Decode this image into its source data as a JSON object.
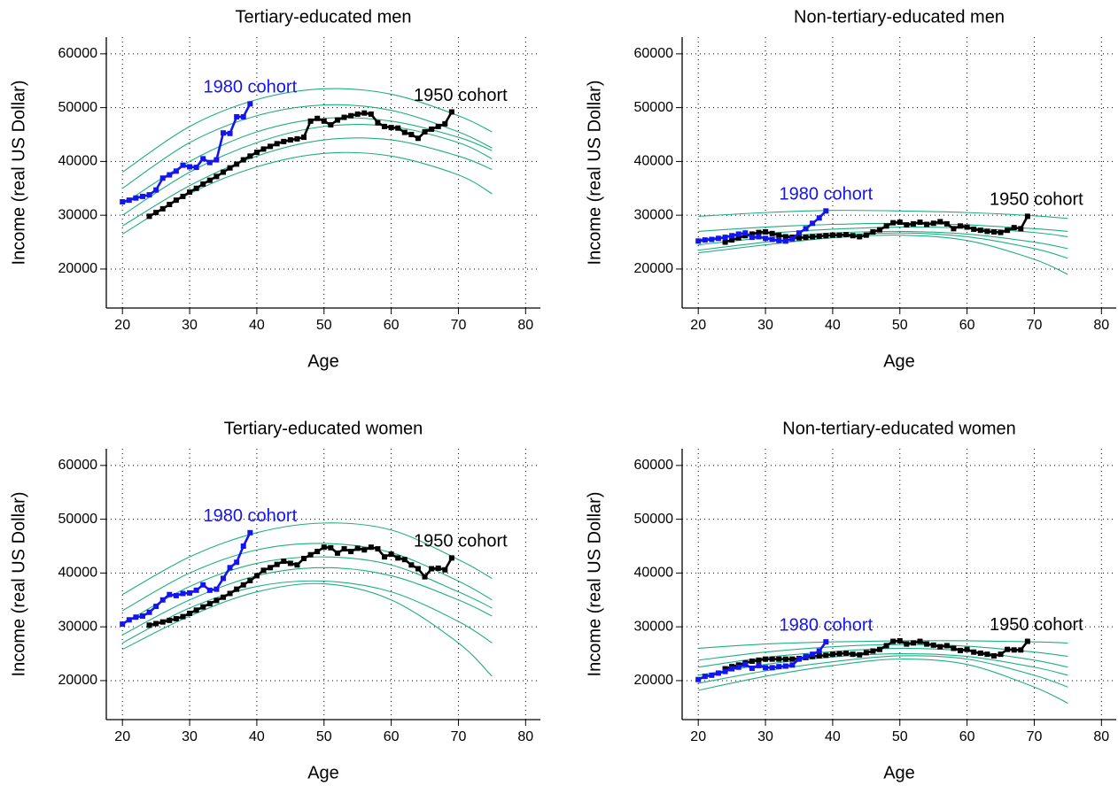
{
  "chart_data": [
    {
      "type": "line",
      "title": "Tertiary-educated men",
      "x_label": "Age",
      "y_label": "Income (real US Dollar)",
      "xlim": [
        17.6,
        82.2
      ],
      "ylim": [
        12750,
        63100
      ],
      "xticks": [
        20,
        30,
        40,
        50,
        60,
        70,
        80
      ],
      "yticks": [
        20000,
        30000,
        40000,
        50000,
        60000
      ],
      "grid": true,
      "curve_color": "#1fae84",
      "curve_x": [
        20,
        30,
        40,
        50,
        60,
        70,
        75
      ],
      "curves": [
        [
          38000,
          46500,
          51500,
          53500,
          52500,
          48500,
          45500
        ],
        [
          35000,
          43500,
          48500,
          50500,
          49500,
          45500,
          42500
        ],
        [
          32000,
          40000,
          45500,
          48000,
          47500,
          44500,
          42000
        ],
        [
          30000,
          38000,
          43500,
          46500,
          46500,
          43500,
          40500
        ],
        [
          28000,
          35500,
          41000,
          44000,
          44000,
          41000,
          38500
        ],
        [
          26500,
          34000,
          39000,
          41500,
          41000,
          37500,
          34000
        ]
      ],
      "series": [
        {
          "name": "1950 cohort",
          "color": "#000000",
          "x": [
            24,
            25,
            26,
            27,
            28,
            29,
            30,
            31,
            32,
            33,
            34,
            35,
            36,
            37,
            38,
            39,
            40,
            41,
            42,
            43,
            44,
            45,
            46,
            47,
            48,
            49,
            50,
            51,
            52,
            53,
            54,
            55,
            56,
            57,
            58,
            59,
            60,
            61,
            62,
            63,
            64,
            65,
            66,
            67,
            68,
            69
          ],
          "values": [
            29800,
            30500,
            31200,
            32000,
            32800,
            33500,
            34300,
            35000,
            35800,
            36500,
            37200,
            38000,
            38800,
            39500,
            40300,
            41000,
            41700,
            42300,
            42800,
            43300,
            43700,
            44000,
            44200,
            44500,
            47500,
            48000,
            47500,
            46800,
            47700,
            48200,
            48500,
            48800,
            49000,
            48800,
            47200,
            46500,
            46300,
            46200,
            45400,
            45000,
            44300,
            45500,
            46000,
            46500,
            47000,
            49200
          ]
        },
        {
          "name": "1980 cohort",
          "color": "#1414f0",
          "x": [
            20,
            21,
            22,
            23,
            24,
            25,
            26,
            27,
            28,
            29,
            30,
            31,
            32,
            33,
            34,
            35,
            36,
            37,
            38,
            39
          ],
          "values": [
            32500,
            32800,
            33200,
            33500,
            33800,
            34700,
            36900,
            37500,
            38200,
            39300,
            39000,
            38900,
            40500,
            39800,
            40300,
            45300,
            45200,
            48300,
            48300,
            50700
          ]
        }
      ]
    },
    {
      "type": "line",
      "title": "Non-tertiary-educated men",
      "x_label": "Age",
      "y_label": "Income (real US Dollar)",
      "xlim": [
        17.6,
        82.2
      ],
      "ylim": [
        12750,
        63100
      ],
      "xticks": [
        20,
        30,
        40,
        50,
        60,
        70,
        80
      ],
      "yticks": [
        20000,
        30000,
        40000,
        50000,
        60000
      ],
      "grid": true,
      "curve_color": "#1fae84",
      "curve_x": [
        20,
        30,
        40,
        50,
        60,
        70,
        75
      ],
      "curves": [
        [
          29800,
          30500,
          30900,
          30800,
          30500,
          29900,
          29400
        ],
        [
          27000,
          27800,
          28300,
          28500,
          28200,
          27500,
          27000
        ],
        [
          25500,
          26600,
          27400,
          27800,
          27600,
          26800,
          26000
        ],
        [
          24500,
          25800,
          26700,
          27000,
          26500,
          25000,
          23800
        ],
        [
          23500,
          25000,
          26200,
          26700,
          26000,
          23800,
          22000
        ],
        [
          23000,
          24500,
          25800,
          26300,
          25300,
          21800,
          19000
        ]
      ],
      "series": [
        {
          "name": "1950 cohort",
          "color": "#000000",
          "x": [
            24,
            25,
            26,
            27,
            28,
            29,
            30,
            31,
            32,
            33,
            34,
            35,
            36,
            37,
            38,
            39,
            40,
            41,
            42,
            43,
            44,
            45,
            46,
            47,
            48,
            49,
            50,
            51,
            52,
            53,
            54,
            55,
            56,
            57,
            58,
            59,
            60,
            61,
            62,
            63,
            64,
            65,
            66,
            67,
            68,
            69
          ],
          "values": [
            25000,
            25400,
            25800,
            26200,
            26500,
            26800,
            26900,
            26600,
            26300,
            26000,
            25900,
            25800,
            25900,
            26000,
            26100,
            26200,
            26300,
            26300,
            26400,
            26200,
            26000,
            26300,
            26900,
            27300,
            28000,
            28600,
            28700,
            28200,
            28400,
            28700,
            28300,
            28500,
            28800,
            28400,
            27500,
            28000,
            27800,
            27400,
            27200,
            27000,
            26900,
            26800,
            27200,
            27700,
            27500,
            29800
          ]
        },
        {
          "name": "1980 cohort",
          "color": "#1414f0",
          "x": [
            20,
            21,
            22,
            23,
            24,
            25,
            26,
            27,
            28,
            29,
            30,
            31,
            32,
            33,
            34,
            35,
            36,
            37,
            38,
            39
          ],
          "values": [
            25200,
            25400,
            25500,
            25700,
            25900,
            26200,
            26500,
            26700,
            25900,
            26000,
            25700,
            25500,
            25300,
            25200,
            25600,
            26700,
            27500,
            28500,
            29500,
            30800
          ]
        }
      ]
    },
    {
      "type": "line",
      "title": "Tertiary-educated women",
      "x_label": "Age",
      "y_label": "Income (real US Dollar)",
      "xlim": [
        17.6,
        82.2
      ],
      "ylim": [
        12750,
        63100
      ],
      "xticks": [
        20,
        30,
        40,
        50,
        60,
        70,
        80
      ],
      "yticks": [
        20000,
        30000,
        40000,
        50000,
        60000
      ],
      "grid": true,
      "curve_color": "#1fae84",
      "curve_x": [
        20,
        30,
        40,
        50,
        60,
        70,
        75
      ],
      "curves": [
        [
          36000,
          43000,
          47500,
          49300,
          48000,
          42500,
          39000
        ],
        [
          33000,
          40000,
          44300,
          45500,
          43800,
          38500,
          35000
        ],
        [
          30500,
          37500,
          41800,
          43000,
          41500,
          36500,
          33500
        ],
        [
          28500,
          35000,
          39500,
          41000,
          39500,
          35000,
          32000
        ],
        [
          27000,
          33500,
          37500,
          38500,
          36500,
          31000,
          27000
        ],
        [
          25800,
          32000,
          36500,
          38000,
          35000,
          27000,
          20800
        ]
      ],
      "series": [
        {
          "name": "1950 cohort",
          "color": "#000000",
          "x": [
            24,
            25,
            26,
            27,
            28,
            29,
            30,
            31,
            32,
            33,
            34,
            35,
            36,
            37,
            38,
            39,
            40,
            41,
            42,
            43,
            44,
            45,
            46,
            47,
            48,
            49,
            50,
            51,
            52,
            53,
            54,
            55,
            56,
            57,
            58,
            59,
            60,
            61,
            62,
            63,
            64,
            65,
            66,
            67,
            68,
            69
          ],
          "values": [
            30300,
            30600,
            30900,
            31200,
            31500,
            31900,
            32500,
            33100,
            33700,
            34300,
            34900,
            35500,
            36200,
            37000,
            37800,
            38600,
            39500,
            40500,
            41000,
            41600,
            42200,
            41800,
            41500,
            42700,
            43400,
            44000,
            44800,
            44700,
            43700,
            44500,
            44000,
            44600,
            44300,
            44800,
            44500,
            43000,
            43500,
            42800,
            42500,
            41500,
            40800,
            39300,
            40800,
            40900,
            40600,
            42800
          ]
        },
        {
          "name": "1980 cohort",
          "color": "#1414f0",
          "x": [
            20,
            21,
            22,
            23,
            24,
            25,
            26,
            27,
            28,
            29,
            30,
            31,
            32,
            33,
            34,
            35,
            36,
            37,
            38,
            39
          ],
          "values": [
            30500,
            31300,
            31800,
            32000,
            32700,
            33800,
            35000,
            36000,
            35800,
            36200,
            36300,
            36800,
            37800,
            36800,
            37000,
            39000,
            41000,
            42000,
            45000,
            47500
          ]
        }
      ]
    },
    {
      "type": "line",
      "title": "Non-tertiary-educated women",
      "x_label": "Age",
      "y_label": "Income (real US Dollar)",
      "xlim": [
        17.6,
        82.2
      ],
      "ylim": [
        12750,
        63100
      ],
      "xticks": [
        20,
        30,
        40,
        50,
        60,
        70,
        80
      ],
      "yticks": [
        20000,
        30000,
        40000,
        50000,
        60000
      ],
      "grid": true,
      "curve_color": "#1fae84",
      "curve_x": [
        20,
        30,
        40,
        50,
        60,
        70,
        75
      ],
      "curves": [
        [
          26000,
          26800,
          27200,
          27400,
          27400,
          27200,
          27000
        ],
        [
          23800,
          25300,
          26300,
          26700,
          26400,
          25300,
          24500
        ],
        [
          22500,
          24300,
          25400,
          26000,
          25500,
          23800,
          22500
        ],
        [
          21000,
          23000,
          24400,
          25000,
          24500,
          22500,
          21000
        ],
        [
          19500,
          21800,
          23500,
          24600,
          24000,
          21000,
          18800
        ],
        [
          18200,
          20800,
          22800,
          24000,
          23000,
          18800,
          15800
        ]
      ],
      "series": [
        {
          "name": "1950 cohort",
          "color": "#000000",
          "x": [
            24,
            25,
            26,
            27,
            28,
            29,
            30,
            31,
            32,
            33,
            34,
            35,
            36,
            37,
            38,
            39,
            40,
            41,
            42,
            43,
            44,
            45,
            46,
            47,
            48,
            49,
            50,
            51,
            52,
            53,
            54,
            55,
            56,
            57,
            58,
            59,
            60,
            61,
            62,
            63,
            64,
            65,
            66,
            67,
            68,
            69
          ],
          "values": [
            22200,
            22600,
            22900,
            23300,
            23600,
            23800,
            24000,
            24000,
            24000,
            24000,
            24000,
            24100,
            24300,
            24500,
            24600,
            24700,
            24900,
            25000,
            25100,
            24900,
            24800,
            25200,
            25500,
            25800,
            26500,
            27300,
            27400,
            26800,
            27000,
            27300,
            26800,
            26600,
            26300,
            26500,
            26000,
            25600,
            25800,
            25300,
            25100,
            24900,
            24600,
            24900,
            25800,
            25700,
            25700,
            27300
          ]
        },
        {
          "name": "1980 cohort",
          "color": "#1414f0",
          "x": [
            20,
            21,
            22,
            23,
            24,
            25,
            26,
            27,
            28,
            29,
            30,
            31,
            32,
            33,
            34,
            35,
            36,
            37,
            38,
            39
          ],
          "values": [
            20200,
            20800,
            21000,
            21400,
            21700,
            22200,
            22500,
            23000,
            22300,
            22800,
            22400,
            22400,
            22600,
            22700,
            22900,
            24000,
            24500,
            24900,
            25500,
            27200
          ]
        }
      ]
    }
  ]
}
